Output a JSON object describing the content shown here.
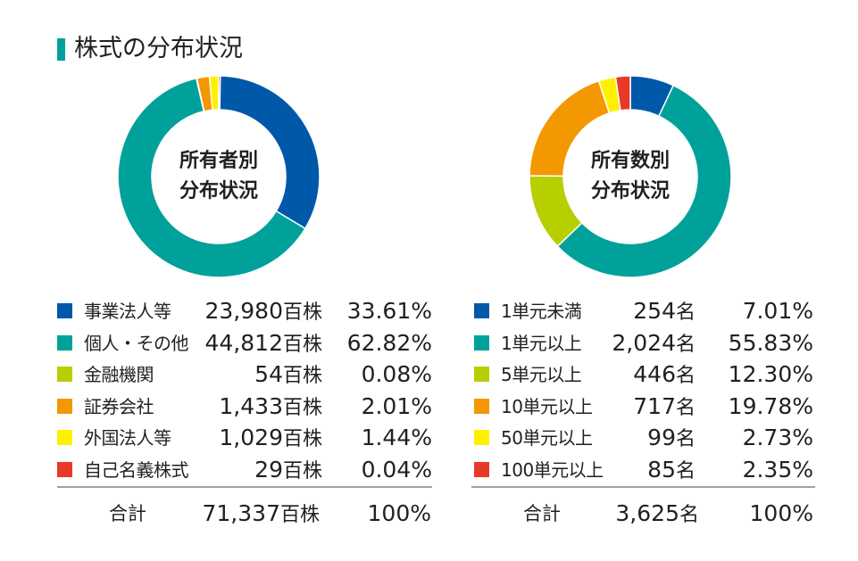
{
  "page": {
    "title": "株式の分布状況",
    "accent_color": "#00a19a"
  },
  "chart_data": [
    {
      "type": "pie",
      "center_label_lines": [
        "所有者別",
        "分布状況"
      ],
      "categories": [
        "事業法人等",
        "個人・その他",
        "金融機関",
        "証券会社",
        "外国法人等",
        "自己名義株式"
      ],
      "values": [
        23980,
        44812,
        54,
        1433,
        1029,
        29
      ],
      "value_labels": [
        "23,980",
        "44,812",
        "54",
        "1,433",
        "1,029",
        "29"
      ],
      "unit": "百株",
      "percentages": [
        "33.61%",
        "62.82%",
        "0.08%",
        "2.01%",
        "1.44%",
        "0.04%"
      ],
      "colors": [
        "#0058a9",
        "#00a19a",
        "#b7cf00",
        "#f39800",
        "#fff000",
        "#e83828"
      ],
      "total_label": "合計",
      "total_value": "71,337",
      "total_pct": "100%"
    },
    {
      "type": "pie",
      "center_label_lines": [
        "所有数別",
        "分布状況"
      ],
      "categories": [
        "1単元未満",
        "1単元以上",
        "5単元以上",
        "10単元以上",
        "50単元以上",
        "100単元以上"
      ],
      "values": [
        254,
        2024,
        446,
        717,
        99,
        85
      ],
      "value_labels": [
        "254",
        "2,024",
        "446",
        "717",
        "99",
        "85"
      ],
      "unit": "名",
      "percentages": [
        "7.01%",
        "55.83%",
        "12.30%",
        "19.78%",
        "2.73%",
        "2.35%"
      ],
      "colors": [
        "#0058a9",
        "#00a19a",
        "#b7cf00",
        "#f39800",
        "#fff000",
        "#e83828"
      ],
      "total_label": "合計",
      "total_value": "3,625",
      "total_pct": "100%"
    }
  ]
}
